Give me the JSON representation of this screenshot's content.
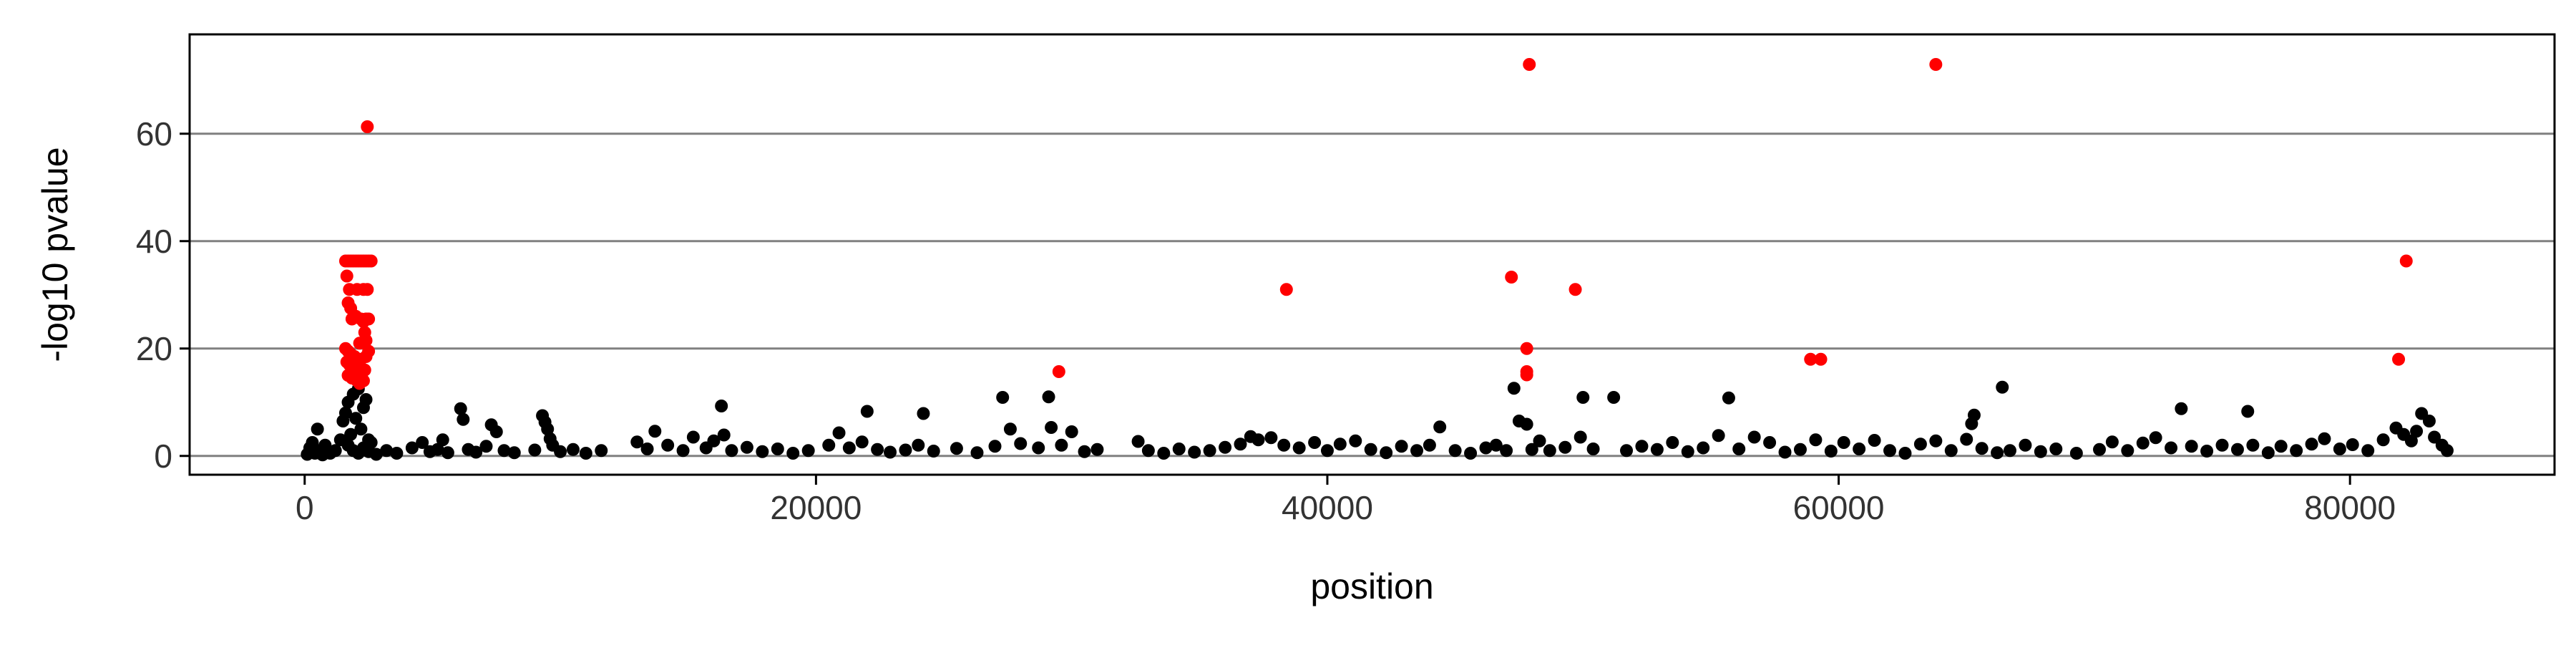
{
  "chart_data": {
    "type": "scatter",
    "title": "",
    "xlabel": "position",
    "ylabel": "-log10 pvalue",
    "xlim": [
      -4500,
      88000
    ],
    "ylim": [
      -3.5,
      78.5
    ],
    "x_ticks": [
      0,
      20000,
      40000,
      60000,
      80000
    ],
    "x_tick_labels": [
      "0",
      "20000",
      "40000",
      "60000",
      "80000"
    ],
    "y_ticks": [
      0,
      20,
      40,
      60
    ],
    "y_tick_labels": [
      "0",
      "20",
      "40",
      "60"
    ],
    "grid": "horizontal major gridlines",
    "legend": "none",
    "colors": {
      "significant": "#ff0000",
      "background": "#000000",
      "grid": "#808080"
    },
    "series": [
      {
        "color": "#ff0000",
        "points": [
          [
            1600,
            36.3
          ],
          [
            1700,
            36.3
          ],
          [
            1800,
            36.3
          ],
          [
            1900,
            36.3
          ],
          [
            2000,
            36.3
          ],
          [
            2100,
            36.3
          ],
          [
            2200,
            36.3
          ],
          [
            2300,
            36.3
          ],
          [
            2400,
            36.3
          ],
          [
            2500,
            36.3
          ],
          [
            2600,
            36.3
          ],
          [
            1650,
            33.5
          ],
          [
            1750,
            31.0
          ],
          [
            2050,
            31.0
          ],
          [
            2300,
            31.0
          ],
          [
            2450,
            31.0
          ],
          [
            1700,
            28.5
          ],
          [
            1800,
            27.5
          ],
          [
            2000,
            26.0
          ],
          [
            1850,
            25.5
          ],
          [
            2200,
            25.5
          ],
          [
            2400,
            25.5
          ],
          [
            2500,
            25.5
          ],
          [
            2300,
            25.0
          ],
          [
            2350,
            23.0
          ],
          [
            2400,
            21.5
          ],
          [
            2150,
            21.0
          ],
          [
            1600,
            20.0
          ],
          [
            1700,
            19.5
          ],
          [
            1800,
            19.0
          ],
          [
            1950,
            18.5
          ],
          [
            2100,
            18.0
          ],
          [
            2200,
            18.0
          ],
          [
            2400,
            18.5
          ],
          [
            2500,
            19.5
          ],
          [
            1650,
            17.5
          ],
          [
            1750,
            17.0
          ],
          [
            1900,
            16.5
          ],
          [
            2000,
            16.0
          ],
          [
            2100,
            15.5
          ],
          [
            2250,
            15.5
          ],
          [
            2350,
            16.0
          ],
          [
            1700,
            15.0
          ],
          [
            1850,
            14.5
          ],
          [
            2050,
            14.0
          ],
          [
            2150,
            13.5
          ],
          [
            2300,
            14.0
          ],
          [
            2450,
            61.3
          ],
          [
            29500,
            15.7
          ],
          [
            38400,
            31.0
          ],
          [
            47200,
            33.3
          ],
          [
            47900,
            72.9
          ],
          [
            47800,
            20.0
          ],
          [
            47800,
            15.7
          ],
          [
            47800,
            15.1
          ],
          [
            49700,
            31.0
          ],
          [
            58900,
            18.0
          ],
          [
            59300,
            18.0
          ],
          [
            63800,
            72.9
          ],
          [
            81900,
            18.0
          ],
          [
            82200,
            36.3
          ]
        ]
      },
      {
        "color": "#000000",
        "points": [
          [
            100,
            0.3
          ],
          [
            200,
            1.5
          ],
          [
            300,
            2.5
          ],
          [
            400,
            0.5
          ],
          [
            500,
            5.0
          ],
          [
            600,
            1.0
          ],
          [
            700,
            0.2
          ],
          [
            800,
            2.0
          ],
          [
            1000,
            0.5
          ],
          [
            1200,
            1.0
          ],
          [
            1400,
            3.0
          ],
          [
            1500,
            6.5
          ],
          [
            1600,
            8.0
          ],
          [
            1700,
            10.0
          ],
          [
            1800,
            4.0
          ],
          [
            1900,
            11.5
          ],
          [
            2000,
            7.0
          ],
          [
            2100,
            12.5
          ],
          [
            2200,
            5.0
          ],
          [
            2300,
            9.0
          ],
          [
            2400,
            10.5
          ],
          [
            2500,
            3.0
          ],
          [
            1700,
            2.0
          ],
          [
            1900,
            1.0
          ],
          [
            2100,
            0.5
          ],
          [
            2300,
            1.5
          ],
          [
            2500,
            0.8
          ],
          [
            2600,
            2.5
          ],
          [
            2800,
            0.3
          ],
          [
            3200,
            1.0
          ],
          [
            3600,
            0.5
          ],
          [
            4200,
            1.5
          ],
          [
            4600,
            2.5
          ],
          [
            4900,
            0.8
          ],
          [
            5200,
            1.2
          ],
          [
            5400,
            3.0
          ],
          [
            5600,
            0.6
          ],
          [
            6100,
            8.8
          ],
          [
            6200,
            6.8
          ],
          [
            6400,
            1.2
          ],
          [
            6700,
            0.7
          ],
          [
            7100,
            1.8
          ],
          [
            7300,
            5.8
          ],
          [
            7500,
            4.5
          ],
          [
            7800,
            1.0
          ],
          [
            8200,
            0.6
          ],
          [
            9000,
            1.1
          ],
          [
            9300,
            7.5
          ],
          [
            9400,
            6.3
          ],
          [
            9500,
            5.0
          ],
          [
            9600,
            3.2
          ],
          [
            9700,
            2.0
          ],
          [
            10000,
            0.8
          ],
          [
            10500,
            1.2
          ],
          [
            11000,
            0.5
          ],
          [
            11600,
            1.0
          ],
          [
            13000,
            2.6
          ],
          [
            13400,
            1.3
          ],
          [
            13700,
            4.6
          ],
          [
            14200,
            2.0
          ],
          [
            14800,
            1.0
          ],
          [
            15200,
            3.5
          ],
          [
            15700,
            1.5
          ],
          [
            16000,
            2.8
          ],
          [
            16300,
            9.3
          ],
          [
            16400,
            3.9
          ],
          [
            16700,
            1.0
          ],
          [
            17300,
            1.6
          ],
          [
            17900,
            0.8
          ],
          [
            18500,
            1.3
          ],
          [
            19100,
            0.5
          ],
          [
            19700,
            1.0
          ],
          [
            20500,
            2.0
          ],
          [
            20900,
            4.3
          ],
          [
            21300,
            1.5
          ],
          [
            21800,
            2.6
          ],
          [
            22000,
            8.3
          ],
          [
            22400,
            1.2
          ],
          [
            22900,
            0.7
          ],
          [
            23500,
            1.1
          ],
          [
            24000,
            2.0
          ],
          [
            24200,
            7.9
          ],
          [
            24600,
            0.9
          ],
          [
            25500,
            1.4
          ],
          [
            26300,
            0.6
          ],
          [
            27000,
            1.8
          ],
          [
            27300,
            10.9
          ],
          [
            27600,
            5.0
          ],
          [
            28000,
            2.3
          ],
          [
            28700,
            1.5
          ],
          [
            29100,
            11.0
          ],
          [
            29200,
            5.3
          ],
          [
            29600,
            2.0
          ],
          [
            30000,
            4.5
          ],
          [
            30500,
            0.8
          ],
          [
            31000,
            1.2
          ],
          [
            32600,
            2.7
          ],
          [
            33000,
            1.0
          ],
          [
            33600,
            0.5
          ],
          [
            34200,
            1.3
          ],
          [
            34800,
            0.7
          ],
          [
            35400,
            1.0
          ],
          [
            36000,
            1.6
          ],
          [
            36600,
            2.2
          ],
          [
            37000,
            3.6
          ],
          [
            37300,
            3.0
          ],
          [
            37800,
            3.4
          ],
          [
            38300,
            2.0
          ],
          [
            38900,
            1.5
          ],
          [
            39500,
            2.5
          ],
          [
            40000,
            1.0
          ],
          [
            40500,
            2.2
          ],
          [
            41100,
            2.8
          ],
          [
            41700,
            1.2
          ],
          [
            42300,
            0.6
          ],
          [
            42900,
            1.8
          ],
          [
            43500,
            1.0
          ],
          [
            44000,
            2.0
          ],
          [
            44400,
            5.4
          ],
          [
            45000,
            1.0
          ],
          [
            45600,
            0.5
          ],
          [
            46200,
            1.5
          ],
          [
            46600,
            2.0
          ],
          [
            47000,
            1.0
          ],
          [
            47300,
            12.6
          ],
          [
            47500,
            6.5
          ],
          [
            47800,
            5.9
          ],
          [
            48000,
            1.2
          ],
          [
            48300,
            2.8
          ],
          [
            48700,
            1.0
          ],
          [
            49300,
            1.6
          ],
          [
            49900,
            3.5
          ],
          [
            50000,
            10.9
          ],
          [
            50400,
            1.3
          ],
          [
            51200,
            10.9
          ],
          [
            51700,
            1.0
          ],
          [
            52300,
            1.8
          ],
          [
            52900,
            1.2
          ],
          [
            53500,
            2.5
          ],
          [
            54100,
            0.8
          ],
          [
            54700,
            1.5
          ],
          [
            55300,
            3.8
          ],
          [
            55700,
            10.8
          ],
          [
            56100,
            1.3
          ],
          [
            56700,
            3.5
          ],
          [
            57300,
            2.5
          ],
          [
            57900,
            0.7
          ],
          [
            58500,
            1.2
          ],
          [
            59100,
            3.0
          ],
          [
            59700,
            0.9
          ],
          [
            60200,
            2.5
          ],
          [
            60800,
            1.3
          ],
          [
            61400,
            2.9
          ],
          [
            62000,
            1.0
          ],
          [
            62600,
            0.5
          ],
          [
            63200,
            2.2
          ],
          [
            63800,
            2.8
          ],
          [
            64400,
            1.0
          ],
          [
            65000,
            3.1
          ],
          [
            65200,
            6.0
          ],
          [
            65300,
            7.6
          ],
          [
            65600,
            1.4
          ],
          [
            66200,
            0.6
          ],
          [
            66400,
            12.8
          ],
          [
            66700,
            1.0
          ],
          [
            67300,
            2.0
          ],
          [
            67900,
            0.8
          ],
          [
            68500,
            1.3
          ],
          [
            69300,
            0.5
          ],
          [
            70200,
            1.2
          ],
          [
            70700,
            2.6
          ],
          [
            71300,
            1.0
          ],
          [
            71900,
            2.4
          ],
          [
            72400,
            3.4
          ],
          [
            73000,
            1.5
          ],
          [
            73400,
            8.8
          ],
          [
            73800,
            1.8
          ],
          [
            74400,
            0.9
          ],
          [
            75000,
            2.0
          ],
          [
            75600,
            1.2
          ],
          [
            76000,
            8.3
          ],
          [
            76200,
            2.0
          ],
          [
            76800,
            0.6
          ],
          [
            77300,
            1.8
          ],
          [
            77900,
            1.0
          ],
          [
            78500,
            2.2
          ],
          [
            79000,
            3.2
          ],
          [
            79600,
            1.3
          ],
          [
            80100,
            2.1
          ],
          [
            80700,
            1.0
          ],
          [
            81300,
            3.0
          ],
          [
            81800,
            5.2
          ],
          [
            82100,
            4.0
          ],
          [
            82400,
            2.8
          ],
          [
            82600,
            4.6
          ],
          [
            82800,
            7.9
          ],
          [
            83100,
            6.5
          ],
          [
            83300,
            3.5
          ],
          [
            83600,
            2.0
          ],
          [
            83800,
            1.0
          ]
        ]
      }
    ]
  }
}
